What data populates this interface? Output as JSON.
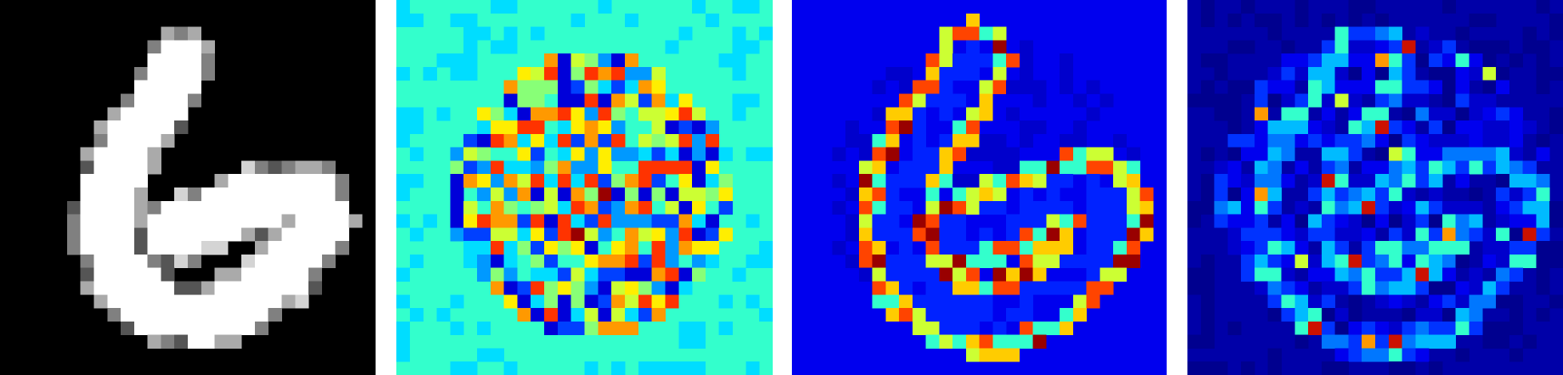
{
  "panels": [
    {
      "id": "input-digit",
      "colormap": "gray",
      "background": "#000000",
      "pattern": "digit",
      "palette": [
        "#000000",
        "#2b2b2b",
        "#555555",
        "#808080",
        "#aaaaaa",
        "#d4d4d4",
        "#ffffff"
      ]
    },
    {
      "id": "weight-map",
      "colormap": "jet",
      "background": "#33ffcc",
      "pattern": "weights",
      "palette": [
        "#0000d9",
        "#0040ff",
        "#0099ff",
        "#00ddff",
        "#33ffcc",
        "#88ff77",
        "#ccff33",
        "#ffee00",
        "#ff9900",
        "#ff3300",
        "#990000"
      ]
    },
    {
      "id": "edge-saliency",
      "colormap": "jet",
      "background": "#0000ee",
      "pattern": "edges",
      "palette": [
        "#00008f",
        "#0000cc",
        "#0000ee",
        "#0022ff",
        "#0066ff",
        "#00bbff",
        "#33ffcc",
        "#ccff33",
        "#ffcc00",
        "#ff4400",
        "#990000"
      ]
    },
    {
      "id": "noise-saliency",
      "colormap": "jet",
      "background": "#0000a8",
      "pattern": "noise",
      "palette": [
        "#00008f",
        "#0000a8",
        "#0000cc",
        "#0000ee",
        "#0033ff",
        "#0077ff",
        "#00bbff",
        "#33ffcc",
        "#ccff33",
        "#ff9900",
        "#cc1100"
      ]
    }
  ]
}
